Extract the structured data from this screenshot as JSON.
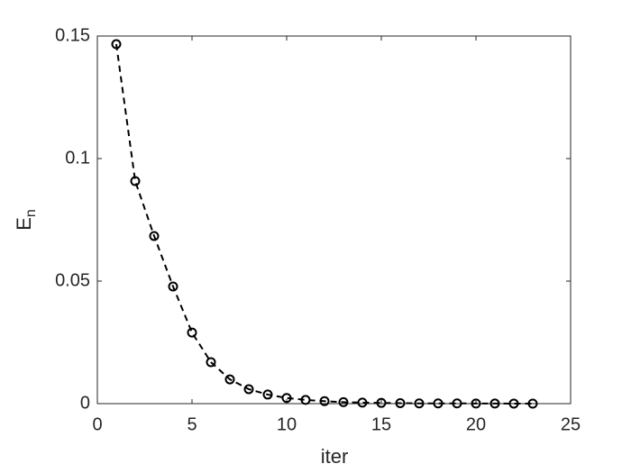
{
  "chart_data": {
    "type": "line",
    "xlabel": "iter",
    "ylabel": {
      "text": "E",
      "subscript": "n"
    },
    "x": [
      1,
      2,
      3,
      4,
      5,
      6,
      7,
      8,
      9,
      10,
      11,
      12,
      13,
      14,
      15,
      16,
      17,
      18,
      19,
      20,
      21,
      22,
      23
    ],
    "series": [
      {
        "color": "#000000",
        "values": [
          0.1467,
          0.0908,
          0.0684,
          0.0478,
          0.029,
          0.0169,
          0.0099,
          0.0059,
          0.0037,
          0.0023,
          0.0015,
          0.001,
          0.0006,
          0.0004,
          0.0003,
          0.0002,
          0.0001,
          0.0001,
          0.0001,
          5e-05,
          3e-05,
          2e-05,
          1e-05
        ]
      }
    ],
    "xlim": [
      0,
      25
    ],
    "xticks": [
      0,
      5,
      10,
      15,
      20,
      25
    ],
    "ylim": [
      0,
      0.15
    ],
    "yticks": [
      0,
      0.05,
      0.1,
      0.15
    ],
    "grid": false
  }
}
